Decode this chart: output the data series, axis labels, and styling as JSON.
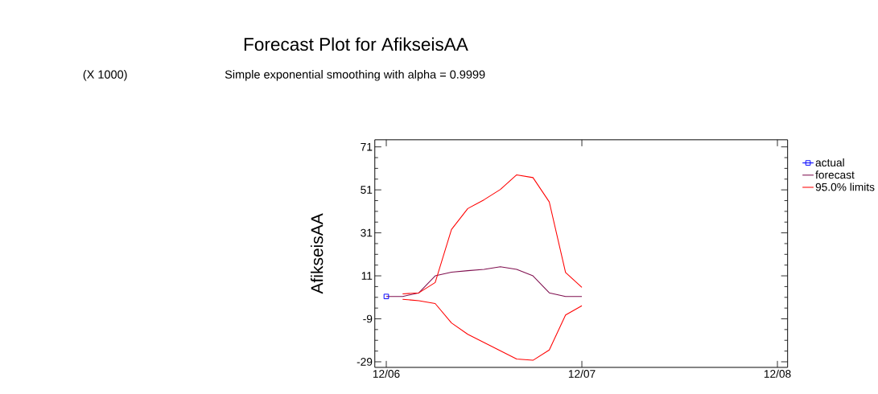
{
  "chart_data": {
    "type": "line",
    "title": "Forecast Plot for AfikseisAA",
    "subtitle": "Simple exponential smoothing with alpha = 0.9999",
    "ylabel": "AfikseisAA",
    "annotations": [
      "(X 1000)"
    ],
    "xlim": [
      "2006-11-10",
      "2008-12-20"
    ],
    "ylim": [
      -31.6,
      74.3
    ],
    "xticks": [
      {
        "value": "2006-12",
        "label": "12/06"
      },
      {
        "value": "2007-12",
        "label": "12/07"
      },
      {
        "value": "2008-12",
        "label": "12/08"
      }
    ],
    "yticks": [
      -29,
      -9,
      11,
      31,
      51,
      71
    ],
    "grid": false,
    "legend": "right",
    "series": [
      {
        "name": "actual",
        "color": "#0000ff",
        "marker": "square",
        "x": [
          "2006-12"
        ],
        "values": [
          1.4
        ]
      },
      {
        "name": "forecast",
        "color": "#7f0f4f",
        "marker": "none",
        "x": [
          "2006-12",
          "2007-01",
          "2007-02",
          "2007-03",
          "2007-04",
          "2007-05",
          "2007-06",
          "2007-07",
          "2007-08",
          "2007-09",
          "2007-10",
          "2007-11",
          "2007-12"
        ],
        "values": [
          1.4,
          1.4,
          3.1,
          11,
          12.7,
          13.4,
          14.0,
          15.2,
          14.0,
          11,
          3.1,
          1.4,
          1.4
        ]
      },
      {
        "name": "95.0% limits",
        "color": "#ff0000",
        "marker": "none",
        "x": [
          "2007-01",
          "2007-02",
          "2007-03",
          "2007-04",
          "2007-05",
          "2007-06",
          "2007-07",
          "2007-08",
          "2007-09",
          "2007-10",
          "2007-11",
          "2007-12"
        ],
        "values": [
          2.6,
          3.1,
          7.9,
          32.6,
          42.3,
          46.4,
          51.2,
          58.0,
          56.7,
          45.4,
          12.6,
          5.6
        ]
      },
      {
        "color": "#ff0000",
        "marker": "none",
        "x": [
          "2007-01",
          "2007-02",
          "2007-03",
          "2007-04",
          "2007-05",
          "2007-06",
          "2007-07",
          "2007-08",
          "2007-09",
          "2007-10",
          "2007-11",
          "2007-12"
        ],
        "values": [
          0.1,
          -0.6,
          -1.9,
          -10.9,
          -16.2,
          -20.0,
          -23.9,
          -27.7,
          -28.3,
          -23.5,
          -7.2,
          -2.9
        ]
      }
    ]
  }
}
